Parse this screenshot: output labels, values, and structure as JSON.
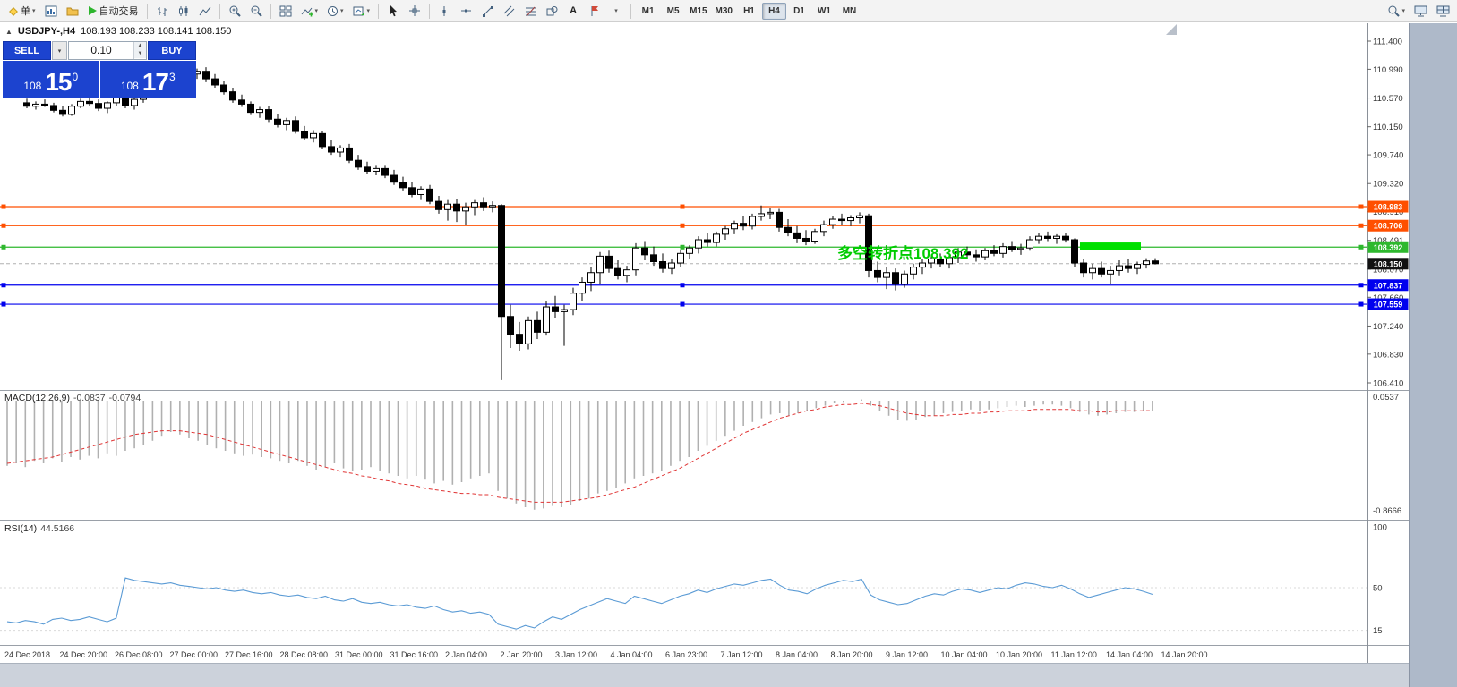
{
  "toolbar": {
    "new_order_label": "单",
    "autotrade_label": "自动交易",
    "text_tool_label": "A",
    "timeframes": [
      "M1",
      "M5",
      "M15",
      "M30",
      "H1",
      "H4",
      "D1",
      "W1",
      "MN"
    ],
    "active_timeframe": "H4"
  },
  "chart_header": {
    "symbol_period": "USDJPY-,H4",
    "ohlc": "108.193 108.233 108.141 108.150"
  },
  "one_click_panel": {
    "sell_label": "SELL",
    "buy_label": "BUY",
    "volume": "0.10",
    "sell_price_main": "108",
    "sell_price_big": "15",
    "sell_price_sup": "0",
    "buy_price_main": "108",
    "buy_price_big": "17",
    "buy_price_sup": "3"
  },
  "chart_data": {
    "type": "candlestick",
    "symbol": "USDJPY-",
    "timeframe": "H4",
    "colors": {
      "bull": "#ffffff",
      "bear": "#000000",
      "wick": "#000000",
      "macd_hist": "#b0b0b0",
      "macd_signal": "#e03535",
      "rsi_line": "#5b9bd5",
      "current_tag": "#111111",
      "accent_blue": "#1c43cf"
    },
    "price_axis": [
      111.4,
      110.99,
      110.57,
      110.15,
      109.74,
      109.32,
      108.91,
      108.491,
      108.07,
      107.66,
      107.24,
      106.83,
      106.41
    ],
    "time_axis": [
      "24 Dec 2018",
      "24 Dec 20:00",
      "26 Dec 08:00",
      "27 Dec 00:00",
      "27 Dec 16:00",
      "28 Dec 08:00",
      "31 Dec 00:00",
      "31 Dec 16:00",
      "2 Jan 04:00",
      "2 Jan 20:00",
      "3 Jan 12:00",
      "4 Jan 04:00",
      "6 Jan 23:00",
      "7 Jan 12:00",
      "8 Jan 04:00",
      "8 Jan 20:00",
      "9 Jan 12:00",
      "10 Jan 04:00",
      "10 Jan 20:00",
      "11 Jan 12:00",
      "14 Jan 04:00",
      "14 Jan 20:00"
    ],
    "hlines": [
      {
        "price": 108.983,
        "color": "#ff4f00",
        "tag": "108.983"
      },
      {
        "price": 108.706,
        "color": "#ff4f00",
        "tag": "108.706"
      },
      {
        "price": 108.392,
        "color": "#2eb82e",
        "tag": "108.392"
      },
      {
        "price": 107.837,
        "color": "#0000ee",
        "tag": "107.837"
      },
      {
        "price": 107.559,
        "color": "#0000ee",
        "tag": "107.559"
      }
    ],
    "current_price": {
      "value": 108.15,
      "tag": "108.150"
    },
    "annotation": {
      "text": "多空转折点108.392",
      "color": "#00cc00"
    },
    "highlight_rect": {
      "x1_candle": 118,
      "x2_candle": 124,
      "price_top": 108.46,
      "price_bottom": 108.35,
      "color": "#00e000"
    },
    "candles": [
      [
        110.5,
        110.56,
        110.42,
        110.45
      ],
      [
        110.45,
        110.52,
        110.4,
        110.48
      ],
      [
        110.48,
        110.55,
        110.44,
        110.46
      ],
      [
        110.46,
        110.5,
        110.36,
        110.39
      ],
      [
        110.39,
        110.46,
        110.3,
        110.33
      ],
      [
        110.33,
        110.48,
        110.31,
        110.45
      ],
      [
        110.45,
        110.56,
        110.42,
        110.52
      ],
      [
        110.52,
        110.6,
        110.46,
        110.49
      ],
      [
        110.49,
        110.55,
        110.38,
        110.42
      ],
      [
        110.42,
        110.52,
        110.35,
        110.5
      ],
      [
        110.5,
        110.62,
        110.45,
        110.58
      ],
      [
        110.58,
        110.63,
        110.42,
        110.46
      ],
      [
        110.46,
        110.58,
        110.4,
        110.55
      ],
      [
        110.55,
        110.66,
        110.5,
        110.62
      ],
      [
        110.62,
        110.75,
        110.58,
        110.7
      ],
      [
        110.7,
        110.85,
        110.65,
        110.8
      ],
      [
        110.8,
        110.95,
        110.75,
        110.9
      ],
      [
        110.9,
        111.08,
        110.82,
        111.02
      ],
      [
        111.02,
        111.1,
        110.88,
        110.92
      ],
      [
        110.92,
        111.0,
        110.85,
        110.96
      ],
      [
        110.96,
        111.02,
        110.8,
        110.85
      ],
      [
        110.85,
        110.92,
        110.72,
        110.76
      ],
      [
        110.76,
        110.82,
        110.62,
        110.66
      ],
      [
        110.66,
        110.72,
        110.5,
        110.54
      ],
      [
        110.54,
        110.62,
        110.44,
        110.48
      ],
      [
        110.48,
        110.52,
        110.32,
        110.36
      ],
      [
        110.36,
        110.44,
        110.28,
        110.4
      ],
      [
        110.4,
        110.46,
        110.22,
        110.26
      ],
      [
        110.26,
        110.34,
        110.14,
        110.18
      ],
      [
        110.18,
        110.28,
        110.1,
        110.24
      ],
      [
        110.24,
        110.3,
        110.05,
        110.08
      ],
      [
        110.08,
        110.16,
        109.95,
        109.99
      ],
      [
        109.99,
        110.1,
        109.92,
        110.05
      ],
      [
        110.05,
        110.08,
        109.82,
        109.86
      ],
      [
        109.86,
        109.95,
        109.74,
        109.78
      ],
      [
        109.78,
        109.88,
        109.7,
        109.84
      ],
      [
        109.84,
        109.9,
        109.62,
        109.66
      ],
      [
        109.66,
        109.74,
        109.52,
        109.56
      ],
      [
        109.56,
        109.64,
        109.46,
        109.5
      ],
      [
        109.5,
        109.58,
        109.44,
        109.54
      ],
      [
        109.54,
        109.58,
        109.4,
        109.44
      ],
      [
        109.44,
        109.52,
        109.3,
        109.34
      ],
      [
        109.34,
        109.42,
        109.22,
        109.26
      ],
      [
        109.26,
        109.34,
        109.12,
        109.16
      ],
      [
        109.16,
        109.28,
        109.08,
        109.24
      ],
      [
        109.24,
        109.3,
        109.02,
        109.06
      ],
      [
        109.06,
        109.14,
        108.88,
        108.94
      ],
      [
        108.94,
        109.08,
        108.78,
        109.02
      ],
      [
        109.02,
        109.1,
        108.76,
        108.92
      ],
      [
        108.92,
        109.04,
        108.72,
        108.98
      ],
      [
        108.98,
        109.08,
        108.86,
        109.04
      ],
      [
        109.04,
        109.12,
        108.92,
        108.98
      ],
      [
        108.98,
        109.06,
        108.9,
        109.0
      ],
      [
        109.0,
        109.02,
        106.45,
        107.38
      ],
      [
        107.38,
        107.55,
        106.92,
        107.12
      ],
      [
        107.12,
        107.3,
        106.88,
        106.98
      ],
      [
        106.98,
        107.38,
        106.9,
        107.32
      ],
      [
        107.32,
        107.45,
        107.05,
        107.15
      ],
      [
        107.15,
        107.6,
        107.1,
        107.52
      ],
      [
        107.52,
        107.68,
        107.35,
        107.45
      ],
      [
        107.45,
        107.55,
        106.95,
        107.48
      ],
      [
        107.48,
        107.8,
        107.4,
        107.72
      ],
      [
        107.72,
        107.95,
        107.6,
        107.88
      ],
      [
        107.88,
        108.1,
        107.75,
        108.02
      ],
      [
        108.02,
        108.32,
        107.85,
        108.26
      ],
      [
        108.26,
        108.34,
        108.02,
        108.08
      ],
      [
        108.08,
        108.2,
        107.92,
        107.98
      ],
      [
        107.98,
        108.12,
        107.88,
        108.06
      ],
      [
        108.06,
        108.45,
        107.98,
        108.38
      ],
      [
        108.38,
        108.48,
        108.2,
        108.28
      ],
      [
        108.28,
        108.4,
        108.12,
        108.18
      ],
      [
        108.18,
        108.3,
        108.02,
        108.08
      ],
      [
        108.08,
        108.22,
        108.0,
        108.16
      ],
      [
        108.16,
        108.35,
        108.1,
        108.3
      ],
      [
        108.3,
        108.42,
        108.22,
        108.38
      ],
      [
        108.38,
        108.55,
        108.3,
        108.5
      ],
      [
        108.5,
        108.6,
        108.4,
        108.46
      ],
      [
        108.46,
        108.62,
        108.4,
        108.58
      ],
      [
        108.58,
        108.7,
        108.5,
        108.66
      ],
      [
        108.66,
        108.78,
        108.58,
        108.74
      ],
      [
        108.74,
        108.85,
        108.64,
        108.7
      ],
      [
        108.7,
        108.88,
        108.65,
        108.84
      ],
      [
        108.84,
        109.0,
        108.78,
        108.88
      ],
      [
        108.88,
        108.96,
        108.8,
        108.9
      ],
      [
        108.9,
        108.95,
        108.62,
        108.68
      ],
      [
        108.68,
        108.8,
        108.55,
        108.6
      ],
      [
        108.6,
        108.7,
        108.45,
        108.52
      ],
      [
        108.52,
        108.64,
        108.42,
        108.48
      ],
      [
        108.48,
        108.66,
        108.44,
        108.62
      ],
      [
        108.62,
        108.78,
        108.55,
        108.72
      ],
      [
        108.72,
        108.85,
        108.66,
        108.8
      ],
      [
        108.8,
        108.88,
        108.72,
        108.78
      ],
      [
        108.78,
        108.86,
        108.7,
        108.82
      ],
      [
        108.82,
        108.9,
        108.74,
        108.85
      ],
      [
        108.85,
        108.88,
        107.95,
        108.05
      ],
      [
        108.05,
        108.18,
        107.88,
        107.95
      ],
      [
        107.95,
        108.1,
        107.78,
        108.02
      ],
      [
        108.02,
        108.08,
        107.76,
        107.85
      ],
      [
        107.85,
        108.05,
        107.8,
        108.0
      ],
      [
        108.0,
        108.15,
        107.92,
        108.1
      ],
      [
        108.1,
        108.22,
        108.0,
        108.16
      ],
      [
        108.16,
        108.28,
        108.08,
        108.22
      ],
      [
        108.22,
        108.3,
        108.1,
        108.15
      ],
      [
        108.15,
        108.28,
        108.08,
        108.24
      ],
      [
        108.24,
        108.38,
        108.16,
        108.32
      ],
      [
        108.32,
        108.4,
        108.22,
        108.28
      ],
      [
        108.28,
        108.36,
        108.18,
        108.25
      ],
      [
        108.25,
        108.38,
        108.2,
        108.34
      ],
      [
        108.34,
        108.42,
        108.26,
        108.3
      ],
      [
        108.3,
        108.45,
        108.24,
        108.4
      ],
      [
        108.4,
        108.48,
        108.32,
        108.36
      ],
      [
        108.36,
        108.44,
        108.28,
        108.38
      ],
      [
        108.38,
        108.55,
        108.34,
        108.5
      ],
      [
        108.5,
        108.6,
        108.44,
        108.55
      ],
      [
        108.55,
        108.62,
        108.48,
        108.52
      ],
      [
        108.52,
        108.58,
        108.44,
        108.55
      ],
      [
        108.55,
        108.6,
        108.46,
        108.5
      ],
      [
        108.5,
        108.52,
        108.1,
        108.16
      ],
      [
        108.16,
        108.22,
        107.95,
        108.02
      ],
      [
        108.02,
        108.15,
        107.92,
        108.08
      ],
      [
        108.08,
        108.18,
        107.95,
        108.0
      ],
      [
        108.0,
        108.12,
        107.85,
        108.05
      ],
      [
        108.05,
        108.2,
        107.98,
        108.12
      ],
      [
        108.12,
        108.22,
        108.02,
        108.08
      ],
      [
        108.08,
        108.18,
        108.0,
        108.14
      ],
      [
        108.14,
        108.23,
        108.08,
        108.19
      ],
      [
        108.19,
        108.23,
        108.14,
        108.15
      ]
    ],
    "macd": {
      "label": "MACD(12,26,9)",
      "value1": "-0.0837",
      "value2": "-0.0794",
      "axis_top": "0.0537",
      "axis_bottom": "-0.8666",
      "hist": [
        -0.52,
        -0.5,
        -0.53,
        -0.48,
        -0.5,
        -0.46,
        -0.49,
        -0.45,
        -0.47,
        -0.44,
        -0.46,
        -0.42,
        -0.44,
        -0.4,
        -0.38,
        -0.35,
        -0.32,
        -0.28,
        -0.25,
        -0.27,
        -0.3,
        -0.32,
        -0.35,
        -0.38,
        -0.4,
        -0.42,
        -0.44,
        -0.43,
        -0.45,
        -0.46,
        -0.48,
        -0.5,
        -0.48,
        -0.52,
        -0.55,
        -0.53,
        -0.5,
        -0.54,
        -0.56,
        -0.55,
        -0.53,
        -0.56,
        -0.58,
        -0.6,
        -0.62,
        -0.6,
        -0.63,
        -0.66,
        -0.64,
        -0.67,
        -0.65,
        -0.62,
        -0.6,
        -0.58,
        -0.72,
        -0.78,
        -0.82,
        -0.85,
        -0.87,
        -0.86,
        -0.84,
        -0.85,
        -0.83,
        -0.8,
        -0.78,
        -0.74,
        -0.72,
        -0.7,
        -0.66,
        -0.62,
        -0.6,
        -0.58,
        -0.56,
        -0.52,
        -0.48,
        -0.45,
        -0.4,
        -0.36,
        -0.32,
        -0.28,
        -0.24,
        -0.2,
        -0.17,
        -0.14,
        -0.11,
        -0.1,
        -0.12,
        -0.1,
        -0.08,
        -0.06,
        -0.04,
        -0.02,
        -0.01,
        0.0,
        0.01,
        -0.04,
        -0.08,
        -0.12,
        -0.15,
        -0.16,
        -0.15,
        -0.13,
        -0.12,
        -0.1,
        -0.09,
        -0.08,
        -0.07,
        -0.08,
        -0.07,
        -0.06,
        -0.05,
        -0.04,
        -0.05,
        -0.04,
        -0.03,
        -0.03,
        -0.04,
        -0.06,
        -0.09,
        -0.11,
        -0.12,
        -0.11,
        -0.1,
        -0.09,
        -0.09,
        -0.08,
        -0.0837
      ],
      "signal": [
        -0.5,
        -0.49,
        -0.48,
        -0.47,
        -0.46,
        -0.45,
        -0.43,
        -0.41,
        -0.39,
        -0.37,
        -0.35,
        -0.33,
        -0.31,
        -0.29,
        -0.27,
        -0.26,
        -0.25,
        -0.24,
        -0.24,
        -0.24,
        -0.25,
        -0.26,
        -0.27,
        -0.29,
        -0.31,
        -0.33,
        -0.35,
        -0.37,
        -0.39,
        -0.41,
        -0.43,
        -0.45,
        -0.47,
        -0.49,
        -0.51,
        -0.53,
        -0.55,
        -0.57,
        -0.58,
        -0.6,
        -0.61,
        -0.63,
        -0.64,
        -0.66,
        -0.67,
        -0.68,
        -0.7,
        -0.71,
        -0.72,
        -0.73,
        -0.74,
        -0.74,
        -0.75,
        -0.75,
        -0.77,
        -0.78,
        -0.79,
        -0.8,
        -0.81,
        -0.81,
        -0.81,
        -0.81,
        -0.8,
        -0.79,
        -0.78,
        -0.77,
        -0.75,
        -0.73,
        -0.71,
        -0.69,
        -0.66,
        -0.63,
        -0.6,
        -0.57,
        -0.54,
        -0.5,
        -0.46,
        -0.42,
        -0.38,
        -0.34,
        -0.3,
        -0.26,
        -0.23,
        -0.2,
        -0.17,
        -0.14,
        -0.12,
        -0.1,
        -0.08,
        -0.07,
        -0.05,
        -0.04,
        -0.03,
        -0.03,
        -0.02,
        -0.03,
        -0.04,
        -0.06,
        -0.08,
        -0.1,
        -0.11,
        -0.12,
        -0.12,
        -0.12,
        -0.11,
        -0.11,
        -0.1,
        -0.1,
        -0.09,
        -0.09,
        -0.08,
        -0.08,
        -0.08,
        -0.07,
        -0.07,
        -0.07,
        -0.07,
        -0.07,
        -0.08,
        -0.08,
        -0.09,
        -0.09,
        -0.08,
        -0.08,
        -0.08,
        -0.08,
        -0.0794
      ]
    },
    "rsi": {
      "label": "RSI(14)",
      "value": "44.5166",
      "levels": [
        100,
        50,
        15
      ],
      "values": [
        22,
        21,
        23,
        22,
        20,
        24,
        25,
        23,
        24,
        26,
        24,
        22,
        25,
        58,
        56,
        55,
        54,
        53,
        54,
        52,
        51,
        50,
        49,
        50,
        48,
        47,
        48,
        46,
        45,
        46,
        44,
        43,
        44,
        42,
        41,
        43,
        40,
        39,
        41,
        38,
        37,
        38,
        36,
        35,
        36,
        34,
        33,
        35,
        32,
        30,
        31,
        29,
        30,
        28,
        20,
        18,
        16,
        19,
        17,
        22,
        26,
        24,
        28,
        32,
        35,
        38,
        41,
        39,
        37,
        43,
        41,
        39,
        37,
        40,
        43,
        45,
        48,
        46,
        49,
        51,
        53,
        52,
        54,
        56,
        57,
        52,
        48,
        47,
        45,
        49,
        52,
        54,
        56,
        55,
        57,
        44,
        40,
        38,
        36,
        37,
        40,
        43,
        45,
        44,
        47,
        49,
        48,
        46,
        48,
        50,
        49,
        52,
        54,
        53,
        51,
        50,
        52,
        49,
        45,
        42,
        44,
        46,
        48,
        50,
        49,
        47,
        44.52
      ]
    }
  }
}
